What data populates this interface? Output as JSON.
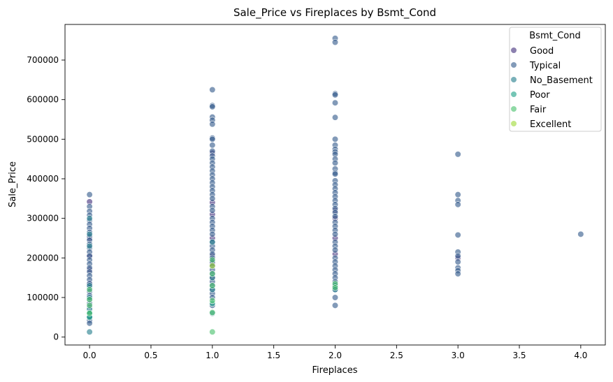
{
  "chart_data": {
    "type": "scatter",
    "title": "Sale_Price vs Fireplaces by Bsmt_Cond",
    "xlabel": "Fireplaces",
    "ylabel": "Sale_Price",
    "xlim": [
      -0.2,
      4.2
    ],
    "ylim": [
      -20000,
      790000
    ],
    "xticks": [
      0.0,
      0.5,
      1.0,
      1.5,
      2.0,
      2.5,
      3.0,
      3.5,
      4.0
    ],
    "xtick_labels": [
      "0.0",
      "0.5",
      "1.0",
      "1.5",
      "2.0",
      "2.5",
      "3.0",
      "3.5",
      "4.0"
    ],
    "yticks": [
      0,
      100000,
      200000,
      300000,
      400000,
      500000,
      600000,
      700000
    ],
    "ytick_labels": [
      "0",
      "100000",
      "200000",
      "300000",
      "400000",
      "500000",
      "600000",
      "700000"
    ],
    "grid": false,
    "legend": {
      "title": "Bsmt_Cond",
      "placement": "top-right",
      "entries": [
        "Good",
        "Typical",
        "No_Basement",
        "Poor",
        "Fair",
        "Excellent"
      ]
    },
    "series": [
      {
        "name": "Good",
        "color": "#46327e",
        "points": [
          [
            0,
            342000
          ],
          [
            0,
            250000
          ],
          [
            0,
            205000
          ],
          [
            0,
            170000
          ],
          [
            0,
            135000
          ],
          [
            1,
            465000
          ],
          [
            1,
            340000
          ],
          [
            1,
            310000
          ],
          [
            1,
            250000
          ],
          [
            1,
            205000
          ],
          [
            1,
            185000
          ],
          [
            1,
            150000
          ],
          [
            2,
            320000
          ],
          [
            2,
            300000
          ],
          [
            2,
            250000
          ],
          [
            2,
            210000
          ],
          [
            3,
            200000
          ]
        ]
      },
      {
        "name": "Typical",
        "color": "#365c8d",
        "points": [
          [
            0,
            360000
          ],
          [
            0,
            330000
          ],
          [
            0,
            318000
          ],
          [
            0,
            308000
          ],
          [
            0,
            295000
          ],
          [
            0,
            285000
          ],
          [
            0,
            275000
          ],
          [
            0,
            265000
          ],
          [
            0,
            255000
          ],
          [
            0,
            245000
          ],
          [
            0,
            235000
          ],
          [
            0,
            225000
          ],
          [
            0,
            215000
          ],
          [
            0,
            205000
          ],
          [
            0,
            195000
          ],
          [
            0,
            185000
          ],
          [
            0,
            175000
          ],
          [
            0,
            165000
          ],
          [
            0,
            155000
          ],
          [
            0,
            145000
          ],
          [
            0,
            135000
          ],
          [
            0,
            125000
          ],
          [
            0,
            115000
          ],
          [
            0,
            105000
          ],
          [
            0,
            95000
          ],
          [
            0,
            85000
          ],
          [
            0,
            75000
          ],
          [
            0,
            65000
          ],
          [
            0,
            58000
          ],
          [
            0,
            50000
          ],
          [
            0,
            42000
          ],
          [
            0,
            35000
          ],
          [
            1,
            625000
          ],
          [
            1,
            585000
          ],
          [
            1,
            582000
          ],
          [
            1,
            556000
          ],
          [
            1,
            548000
          ],
          [
            1,
            538000
          ],
          [
            1,
            503000
          ],
          [
            1,
            500000
          ],
          [
            1,
            485000
          ],
          [
            1,
            470000
          ],
          [
            1,
            458000
          ],
          [
            1,
            450000
          ],
          [
            1,
            440000
          ],
          [
            1,
            430000
          ],
          [
            1,
            420000
          ],
          [
            1,
            410000
          ],
          [
            1,
            400000
          ],
          [
            1,
            390000
          ],
          [
            1,
            380000
          ],
          [
            1,
            370000
          ],
          [
            1,
            360000
          ],
          [
            1,
            350000
          ],
          [
            1,
            330000
          ],
          [
            1,
            320000
          ],
          [
            1,
            300000
          ],
          [
            1,
            290000
          ],
          [
            1,
            280000
          ],
          [
            1,
            270000
          ],
          [
            1,
            260000
          ],
          [
            1,
            240000
          ],
          [
            1,
            230000
          ],
          [
            1,
            220000
          ],
          [
            1,
            210000
          ],
          [
            1,
            200000
          ],
          [
            1,
            190000
          ],
          [
            1,
            180000
          ],
          [
            1,
            170000
          ],
          [
            1,
            160000
          ],
          [
            1,
            140000
          ],
          [
            1,
            130000
          ],
          [
            1,
            120000
          ],
          [
            1,
            110000
          ],
          [
            1,
            100000
          ],
          [
            1,
            80000
          ],
          [
            2,
            755000
          ],
          [
            2,
            745000
          ],
          [
            2,
            615000
          ],
          [
            2,
            612000
          ],
          [
            2,
            592000
          ],
          [
            2,
            555000
          ],
          [
            2,
            500000
          ],
          [
            2,
            485000
          ],
          [
            2,
            475000
          ],
          [
            2,
            468000
          ],
          [
            2,
            462000
          ],
          [
            2,
            450000
          ],
          [
            2,
            440000
          ],
          [
            2,
            425000
          ],
          [
            2,
            415000
          ],
          [
            2,
            412000
          ],
          [
            2,
            395000
          ],
          [
            2,
            385000
          ],
          [
            2,
            375000
          ],
          [
            2,
            365000
          ],
          [
            2,
            355000
          ],
          [
            2,
            345000
          ],
          [
            2,
            335000
          ],
          [
            2,
            325000
          ],
          [
            2,
            315000
          ],
          [
            2,
            305000
          ],
          [
            2,
            290000
          ],
          [
            2,
            280000
          ],
          [
            2,
            270000
          ],
          [
            2,
            260000
          ],
          [
            2,
            240000
          ],
          [
            2,
            230000
          ],
          [
            2,
            220000
          ],
          [
            2,
            200000
          ],
          [
            2,
            190000
          ],
          [
            2,
            180000
          ],
          [
            2,
            170000
          ],
          [
            2,
            160000
          ],
          [
            2,
            150000
          ],
          [
            2,
            140000
          ],
          [
            2,
            130000
          ],
          [
            2,
            120000
          ],
          [
            2,
            100000
          ],
          [
            2,
            80000
          ],
          [
            3,
            462000
          ],
          [
            3,
            360000
          ],
          [
            3,
            345000
          ],
          [
            3,
            335000
          ],
          [
            3,
            258000
          ],
          [
            3,
            215000
          ],
          [
            3,
            205000
          ],
          [
            3,
            190000
          ],
          [
            3,
            175000
          ],
          [
            3,
            168000
          ],
          [
            3,
            160000
          ],
          [
            4,
            260000
          ]
        ]
      },
      {
        "name": "No_Basement",
        "color": "#277f8e",
        "points": [
          [
            0,
            300000
          ],
          [
            0,
            260000
          ],
          [
            0,
            230000
          ],
          [
            0,
            130000
          ],
          [
            0,
            100000
          ],
          [
            0,
            70000
          ],
          [
            0,
            52000
          ],
          [
            0,
            13000
          ],
          [
            1,
            240000
          ],
          [
            1,
            150000
          ],
          [
            1,
            120000
          ],
          [
            1,
            60000
          ],
          [
            2,
            130000
          ],
          [
            2,
            120000
          ]
        ]
      },
      {
        "name": "Poor",
        "color": "#1fa187",
        "points": [
          [
            0,
            62000
          ],
          [
            0,
            50000
          ],
          [
            1,
            85000
          ]
        ]
      },
      {
        "name": "Fair",
        "color": "#4ac16d",
        "points": [
          [
            0,
            120000
          ],
          [
            0,
            95000
          ],
          [
            0,
            80000
          ],
          [
            0,
            60000
          ],
          [
            1,
            195000
          ],
          [
            1,
            160000
          ],
          [
            1,
            130000
          ],
          [
            1,
            92000
          ],
          [
            1,
            62000
          ],
          [
            1,
            13000
          ],
          [
            2,
            135000
          ],
          [
            2,
            125000
          ]
        ]
      },
      {
        "name": "Excellent",
        "color": "#a0da39",
        "points": [
          [
            1,
            180000
          ]
        ]
      }
    ]
  }
}
